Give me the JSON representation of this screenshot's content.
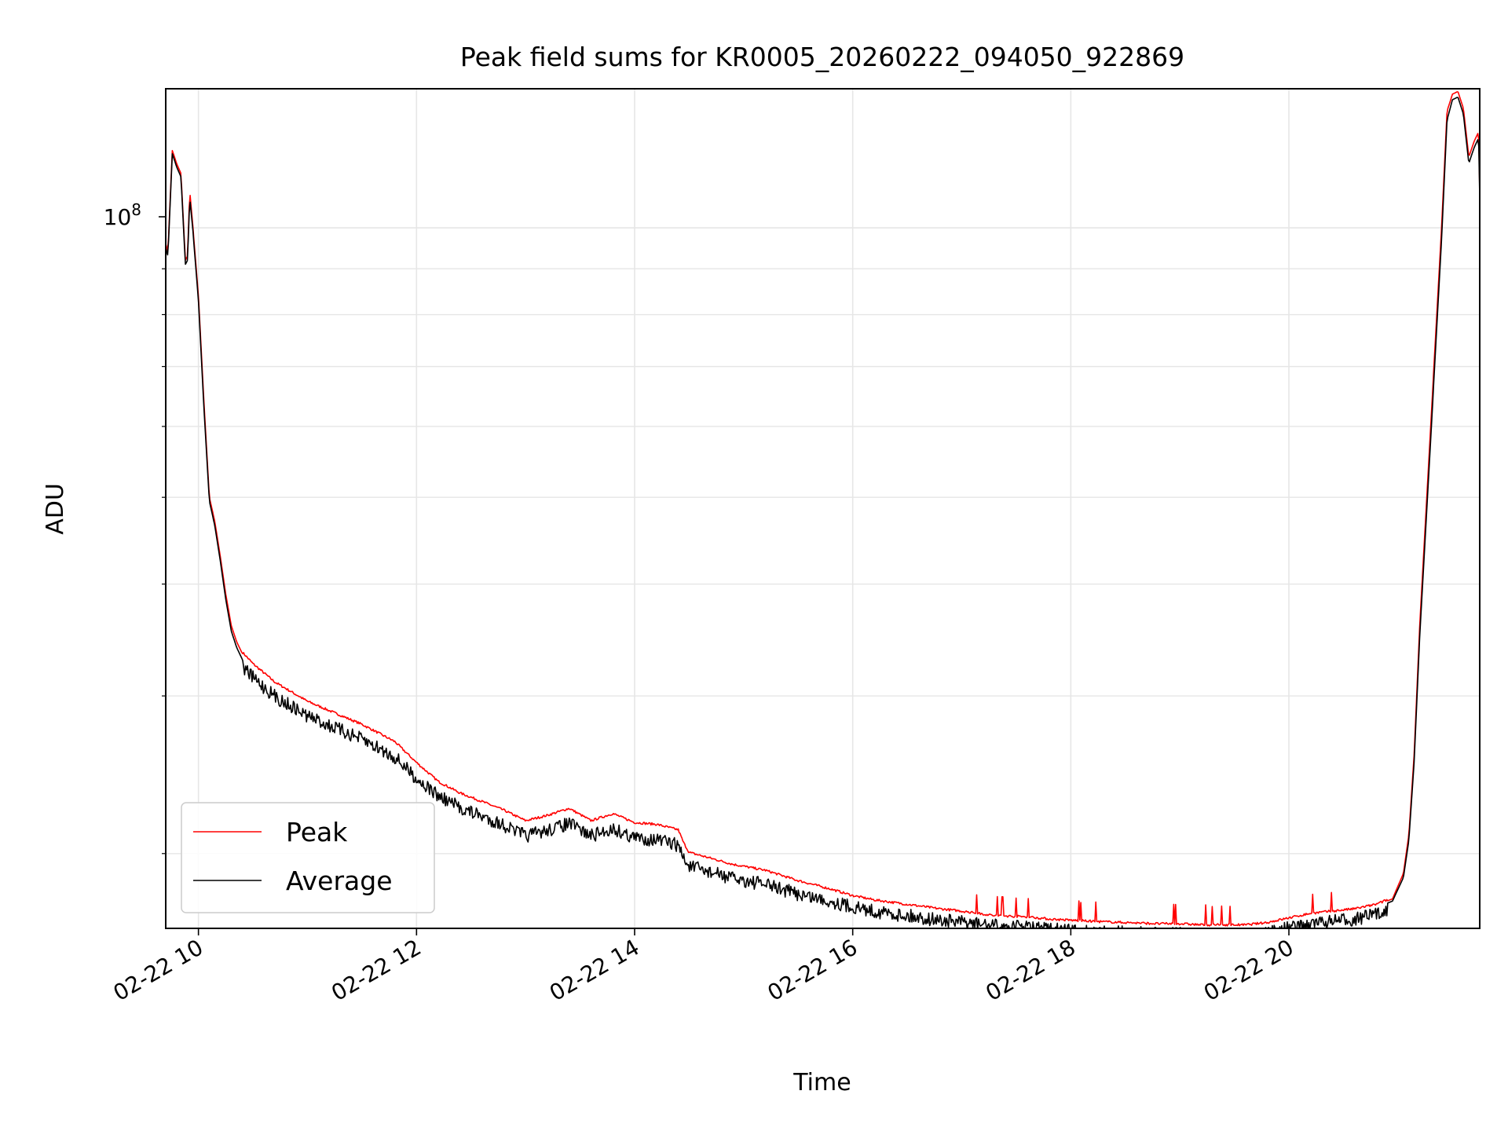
{
  "chart_data": {
    "type": "line",
    "title": "Peak field sums for KR0005_20260222_094050_922869",
    "xlabel": "Time",
    "ylabel": "ADU",
    "yscale": "log",
    "ylim": [
      16500000,
      143000000
    ],
    "xlim": [
      9.7,
      21.75
    ],
    "x_ticks": [
      10,
      12,
      14,
      16,
      18,
      20
    ],
    "x_tick_labels": [
      "02-22 10",
      "02-22 12",
      "02-22 14",
      "02-22 16",
      "02-22 18",
      "02-22 20"
    ],
    "y_major_ticks": [
      100000000
    ],
    "y_major_tick_label": {
      "base": "10",
      "exponent": "8"
    },
    "y_minor_ticks": [
      20000000,
      30000000,
      40000000,
      50000000,
      60000000,
      70000000,
      80000000,
      90000000
    ],
    "grid": true,
    "legend_position": "lower-left",
    "series": [
      {
        "name": "Peak",
        "color": "#ff0000",
        "x": [
          9.7,
          9.72,
          9.76,
          9.8,
          9.84,
          9.88,
          9.9,
          9.92,
          9.95,
          10.0,
          10.05,
          10.1,
          10.15,
          10.2,
          10.25,
          10.3,
          10.35,
          10.4,
          10.5,
          10.7,
          11.0,
          11.2,
          11.5,
          11.8,
          12.0,
          12.2,
          12.4,
          12.6,
          12.8,
          13.0,
          13.2,
          13.4,
          13.6,
          13.8,
          14.0,
          14.2,
          14.4,
          14.45,
          14.5,
          14.7,
          14.9,
          15.2,
          15.5,
          15.8,
          16.0,
          16.2,
          16.5,
          16.8,
          17.0,
          17.3,
          17.6,
          17.8,
          18.0,
          18.2,
          18.5,
          18.8,
          19.0,
          19.2,
          19.4,
          19.6,
          19.8,
          20.0,
          20.2,
          20.4,
          20.6,
          20.8,
          20.95,
          21.05,
          21.1,
          21.15,
          21.2,
          21.3,
          21.4,
          21.45,
          21.5,
          21.55,
          21.6,
          21.65,
          21.7,
          21.74,
          21.75
        ],
        "values": [
          96000000,
          94000000,
          122000000,
          118000000,
          115000000,
          92000000,
          93000000,
          110000000,
          100000000,
          84000000,
          64000000,
          50000000,
          47000000,
          43000000,
          39000000,
          36000000,
          34500000,
          33500000,
          32500000,
          31000000,
          29500000,
          28800000,
          27800000,
          26600000,
          25200000,
          24000000,
          23300000,
          22800000,
          22300000,
          21700000,
          22000000,
          22400000,
          21700000,
          22100000,
          21600000,
          21500000,
          21200000,
          20500000,
          20000000,
          19700000,
          19400000,
          19100000,
          18600000,
          18200000,
          17900000,
          17700000,
          17500000,
          17300000,
          17200000,
          17000000,
          16950000,
          16850000,
          16800000,
          16750000,
          16700000,
          16650000,
          16650000,
          16600000,
          16600000,
          16600000,
          16700000,
          16900000,
          17100000,
          17200000,
          17300000,
          17500000,
          17800000,
          19000000,
          21000000,
          26000000,
          36000000,
          60000000,
          100000000,
          135000000,
          141000000,
          142000000,
          136000000,
          120000000,
          125000000,
          128000000,
          110000000
        ]
      },
      {
        "name": "Average",
        "color": "#000000",
        "x": [
          9.7,
          9.72,
          9.76,
          9.8,
          9.84,
          9.88,
          9.9,
          9.92,
          9.95,
          10.0,
          10.05,
          10.1,
          10.15,
          10.2,
          10.25,
          10.3,
          10.35,
          10.4,
          10.5,
          10.7,
          11.0,
          11.2,
          11.5,
          11.8,
          12.0,
          12.2,
          12.4,
          12.6,
          12.8,
          13.0,
          13.2,
          13.4,
          13.6,
          13.8,
          14.0,
          14.2,
          14.4,
          14.45,
          14.5,
          14.7,
          14.9,
          15.2,
          15.5,
          15.8,
          16.0,
          16.2,
          16.5,
          16.8,
          17.0,
          17.3,
          17.6,
          17.8,
          18.0,
          18.2,
          18.5,
          18.8,
          19.0,
          19.2,
          19.4,
          19.6,
          19.8,
          20.0,
          20.2,
          20.4,
          20.6,
          20.8,
          20.95,
          21.05,
          21.1,
          21.15,
          21.2,
          21.3,
          21.4,
          21.45,
          21.5,
          21.55,
          21.6,
          21.65,
          21.7,
          21.74,
          21.75
        ],
        "values": [
          95000000,
          93000000,
          121000000,
          117000000,
          114000000,
          91000000,
          92000000,
          108000000,
          99000000,
          83000000,
          63000000,
          49500000,
          46500000,
          42500000,
          38500000,
          35500000,
          34000000,
          33000000,
          32000000,
          30500000,
          29000000,
          28300000,
          27300000,
          26100000,
          24700000,
          23600000,
          22900000,
          22400000,
          21900000,
          21300000,
          21600000,
          22000000,
          21300000,
          21700000,
          21200000,
          21100000,
          20800000,
          20100000,
          19700000,
          19400000,
          19100000,
          18800000,
          18350000,
          18000000,
          17750000,
          17550000,
          17350000,
          17150000,
          17050000,
          16900000,
          16850000,
          16750000,
          16700000,
          16650000,
          16600000,
          16550000,
          16550000,
          16500000,
          16500000,
          16500000,
          16600000,
          16800000,
          17000000,
          17100000,
          17200000,
          17400000,
          17700000,
          18800000,
          20700000,
          25500000,
          35000000,
          58000000,
          97000000,
          132000000,
          139000000,
          140000000,
          134000000,
          118000000,
          123000000,
          126000000,
          108000000
        ]
      }
    ]
  }
}
